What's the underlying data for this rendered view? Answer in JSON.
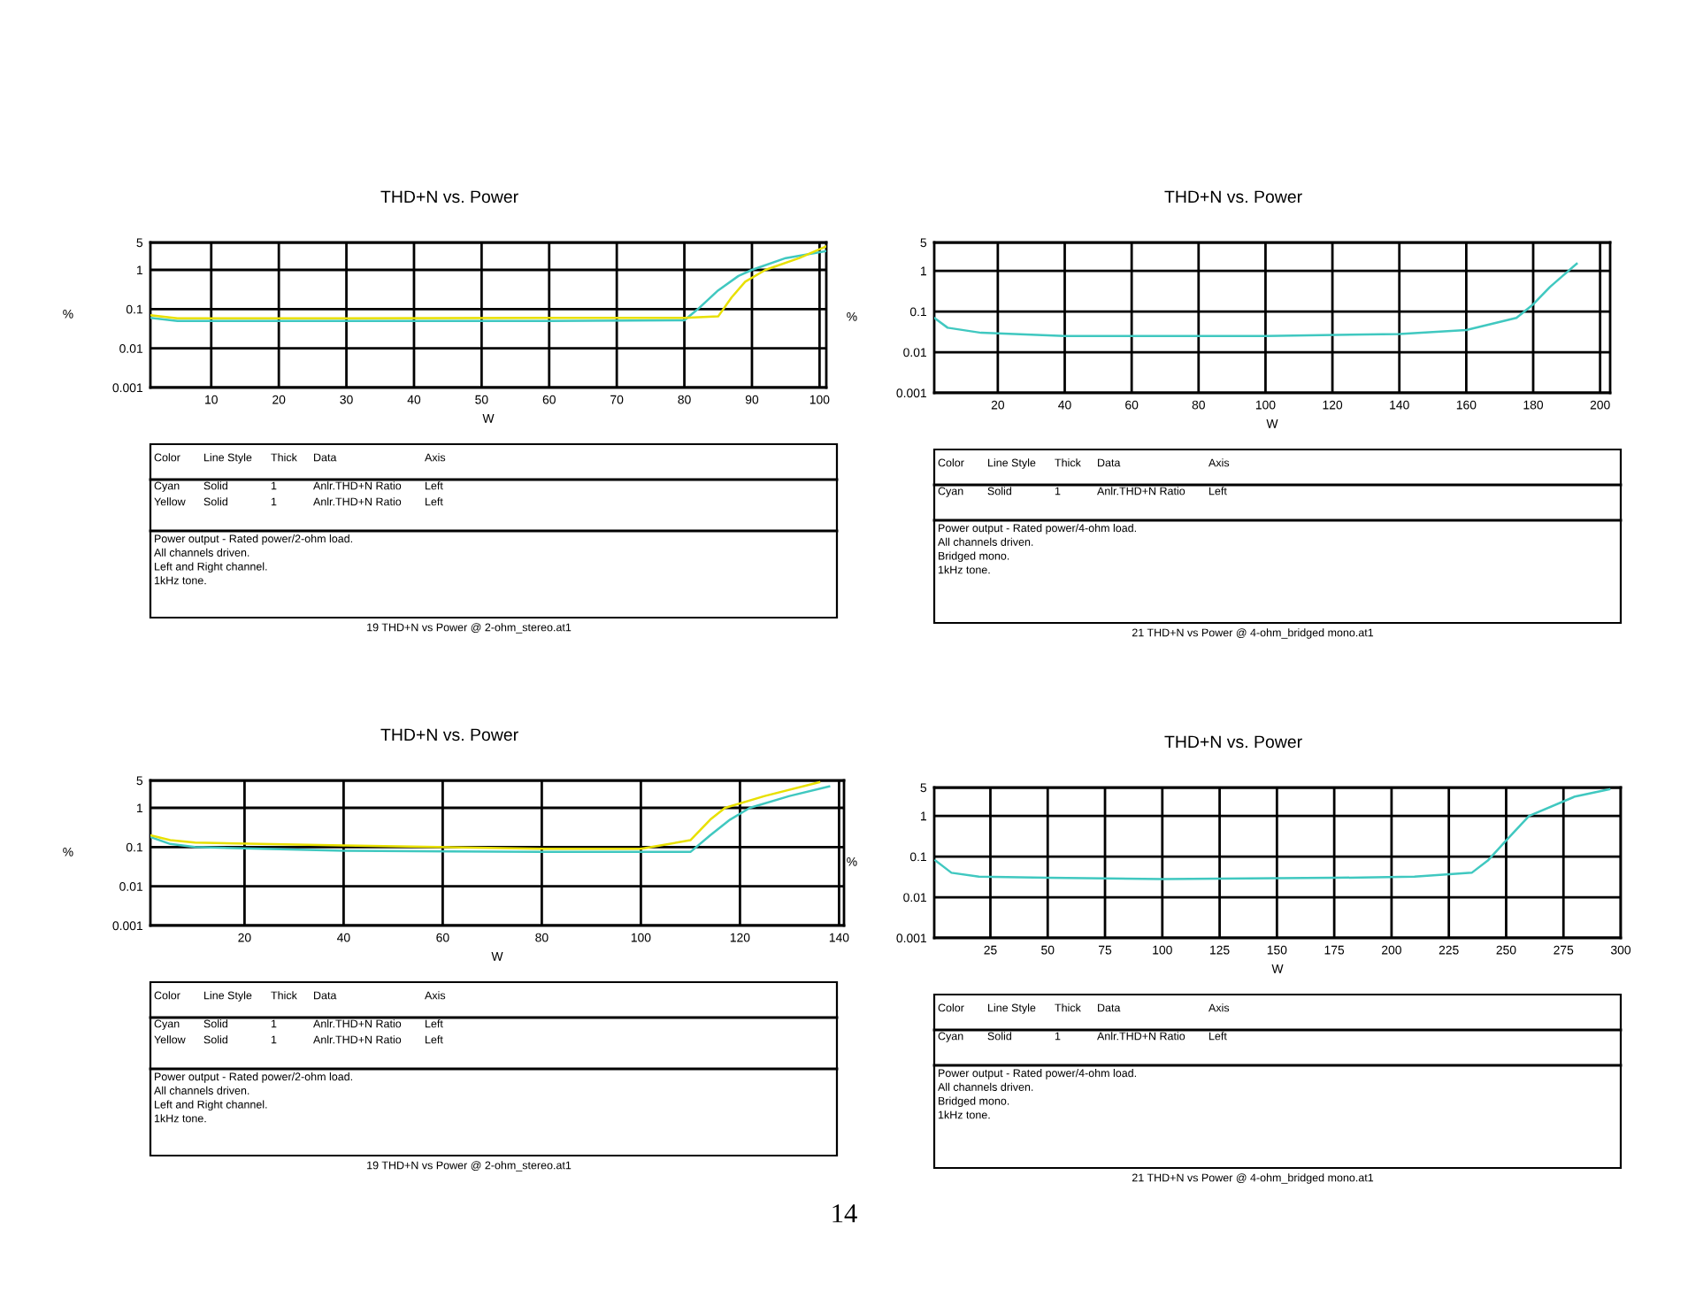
{
  "chart_data": [
    {
      "type": "line",
      "title": "THD+N vs. Power",
      "xlabel": "W",
      "ylabel": "%",
      "log": "y",
      "grid": true,
      "line_style": "solid",
      "xlim": [
        1,
        101
      ],
      "xticks": [
        10,
        20,
        30,
        40,
        50,
        60,
        70,
        80,
        90,
        100
      ],
      "ylim": [
        0.001,
        5
      ],
      "yticks": [
        0.001,
        0.01,
        0.1,
        1,
        5
      ],
      "series": [
        {
          "color": "#40c8c0",
          "x": [
            1,
            5,
            10,
            30,
            60,
            80,
            82,
            85,
            88,
            90,
            95,
            101
          ],
          "values": [
            0.06,
            0.05,
            0.05,
            0.05,
            0.05,
            0.052,
            0.1,
            0.3,
            0.7,
            1,
            2,
            3
          ]
        },
        {
          "color": "#e8e000",
          "x": [
            1,
            5,
            10,
            30,
            60,
            80,
            85,
            87,
            89,
            92,
            97,
            101
          ],
          "values": [
            0.07,
            0.058,
            0.058,
            0.058,
            0.06,
            0.06,
            0.065,
            0.2,
            0.5,
            1,
            2,
            4
          ]
        }
      ],
      "annotations": [
        "Color\tLine Style\tThick\tData\tAxis",
        "Cyan\tSolid\t1\tAnlr.THD+N Ratio\tLeft",
        "Yellow\tSolid\t1\tAnlr.THD+N Ratio\tLeft",
        "Power output - Rated power/2-ohm load.\nAll channels driven.\nLeft and Right channel.\n1kHz tone.",
        "19 THD+N vs Power @ 2-ohm_stereo.at1"
      ]
    },
    {
      "type": "line",
      "title": "THD+N vs. Power",
      "xlabel": "W",
      "ylabel": "%",
      "log": "y",
      "grid": true,
      "line_style": "solid",
      "xlim": [
        1,
        203
      ],
      "xticks": [
        20,
        40,
        60,
        80,
        100,
        120,
        140,
        160,
        180,
        200
      ],
      "ylim": [
        0.001,
        5
      ],
      "yticks": [
        0.001,
        0.01,
        0.1,
        1,
        5
      ],
      "series": [
        {
          "color": "#40c8c0",
          "x": [
            1,
            5,
            15,
            40,
            100,
            140,
            160,
            175,
            180,
            185,
            193
          ],
          "values": [
            0.07,
            0.04,
            0.03,
            0.025,
            0.025,
            0.028,
            0.035,
            0.07,
            0.15,
            0.4,
            1.5
          ]
        }
      ],
      "annotations": [
        "Color\tLine Style\tThick\tData\tAxis",
        "Cyan\tSolid\t1\tAnlr.THD+N Ratio\tLeft",
        "Power output - Rated power/4-ohm load.\nAll channels driven.\nBridged mono.\n1kHz tone.",
        "21 THD+N vs Power @ 4-ohm_bridged mono.at1"
      ]
    },
    {
      "type": "line",
      "title": "THD+N vs. Power",
      "xlabel": "W",
      "ylabel": "%",
      "log": "y",
      "grid": true,
      "line_style": "solid",
      "xlim": [
        1,
        141
      ],
      "xticks": [
        20,
        40,
        60,
        80,
        100,
        120,
        140
      ],
      "ylim": [
        0.001,
        5
      ],
      "yticks": [
        0.001,
        0.01,
        0.1,
        1,
        5
      ],
      "series": [
        {
          "color": "#40c8c0",
          "x": [
            1,
            5,
            10,
            40,
            80,
            110,
            114,
            118,
            122,
            130,
            138
          ],
          "values": [
            0.18,
            0.12,
            0.1,
            0.08,
            0.075,
            0.075,
            0.2,
            0.5,
            1,
            2,
            3.5
          ]
        },
        {
          "color": "#e8e000",
          "x": [
            1,
            5,
            10,
            40,
            80,
            100,
            110,
            114,
            117,
            125,
            136
          ],
          "values": [
            0.2,
            0.15,
            0.13,
            0.11,
            0.09,
            0.09,
            0.15,
            0.5,
            1,
            2,
            4.5
          ]
        }
      ],
      "annotations": [
        "Color\tLine Style\tThick\tData\tAxis",
        "Cyan\tSolid\t1\tAnlr.THD+N Ratio\tLeft",
        "Yellow\tSolid\t1\tAnlr.THD+N Ratio\tLeft",
        "Power output - Rated power/2-ohm load.\nAll channels driven.\nLeft and Right channel.\n1kHz tone.",
        "19 THD+N vs Power @ 2-ohm_stereo.at1"
      ]
    },
    {
      "type": "line",
      "title": "THD+N vs. Power",
      "xlabel": "W",
      "ylabel": "%",
      "log": "y",
      "grid": true,
      "line_style": "solid",
      "xlim": [
        0.5,
        300
      ],
      "xticks": [
        25,
        50,
        75,
        100,
        125,
        150,
        175,
        200,
        225,
        250,
        275,
        300
      ],
      "ylim": [
        0.001,
        5
      ],
      "yticks": [
        0.001,
        0.01,
        0.1,
        1,
        5
      ],
      "series": [
        {
          "color": "#40c8c0",
          "x": [
            1,
            8,
            20,
            50,
            100,
            175,
            210,
            235,
            242,
            250,
            260,
            280,
            295
          ],
          "values": [
            0.08,
            0.04,
            0.032,
            0.03,
            0.028,
            0.03,
            0.032,
            0.04,
            0.08,
            0.25,
            1,
            3,
            4.5
          ]
        }
      ],
      "annotations": [
        "Color\tLine Style\tThick\tData\tAxis",
        "Cyan\tSolid\t1\tAnlr.THD+N Ratio\tLeft",
        "Power output - Rated power/4-ohm load.\nAll channels driven.\nBridged mono.\n1kHz tone.",
        "21 THD+N vs Power @ 4-ohm_bridged mono.at1",
        "14"
      ]
    }
  ]
}
